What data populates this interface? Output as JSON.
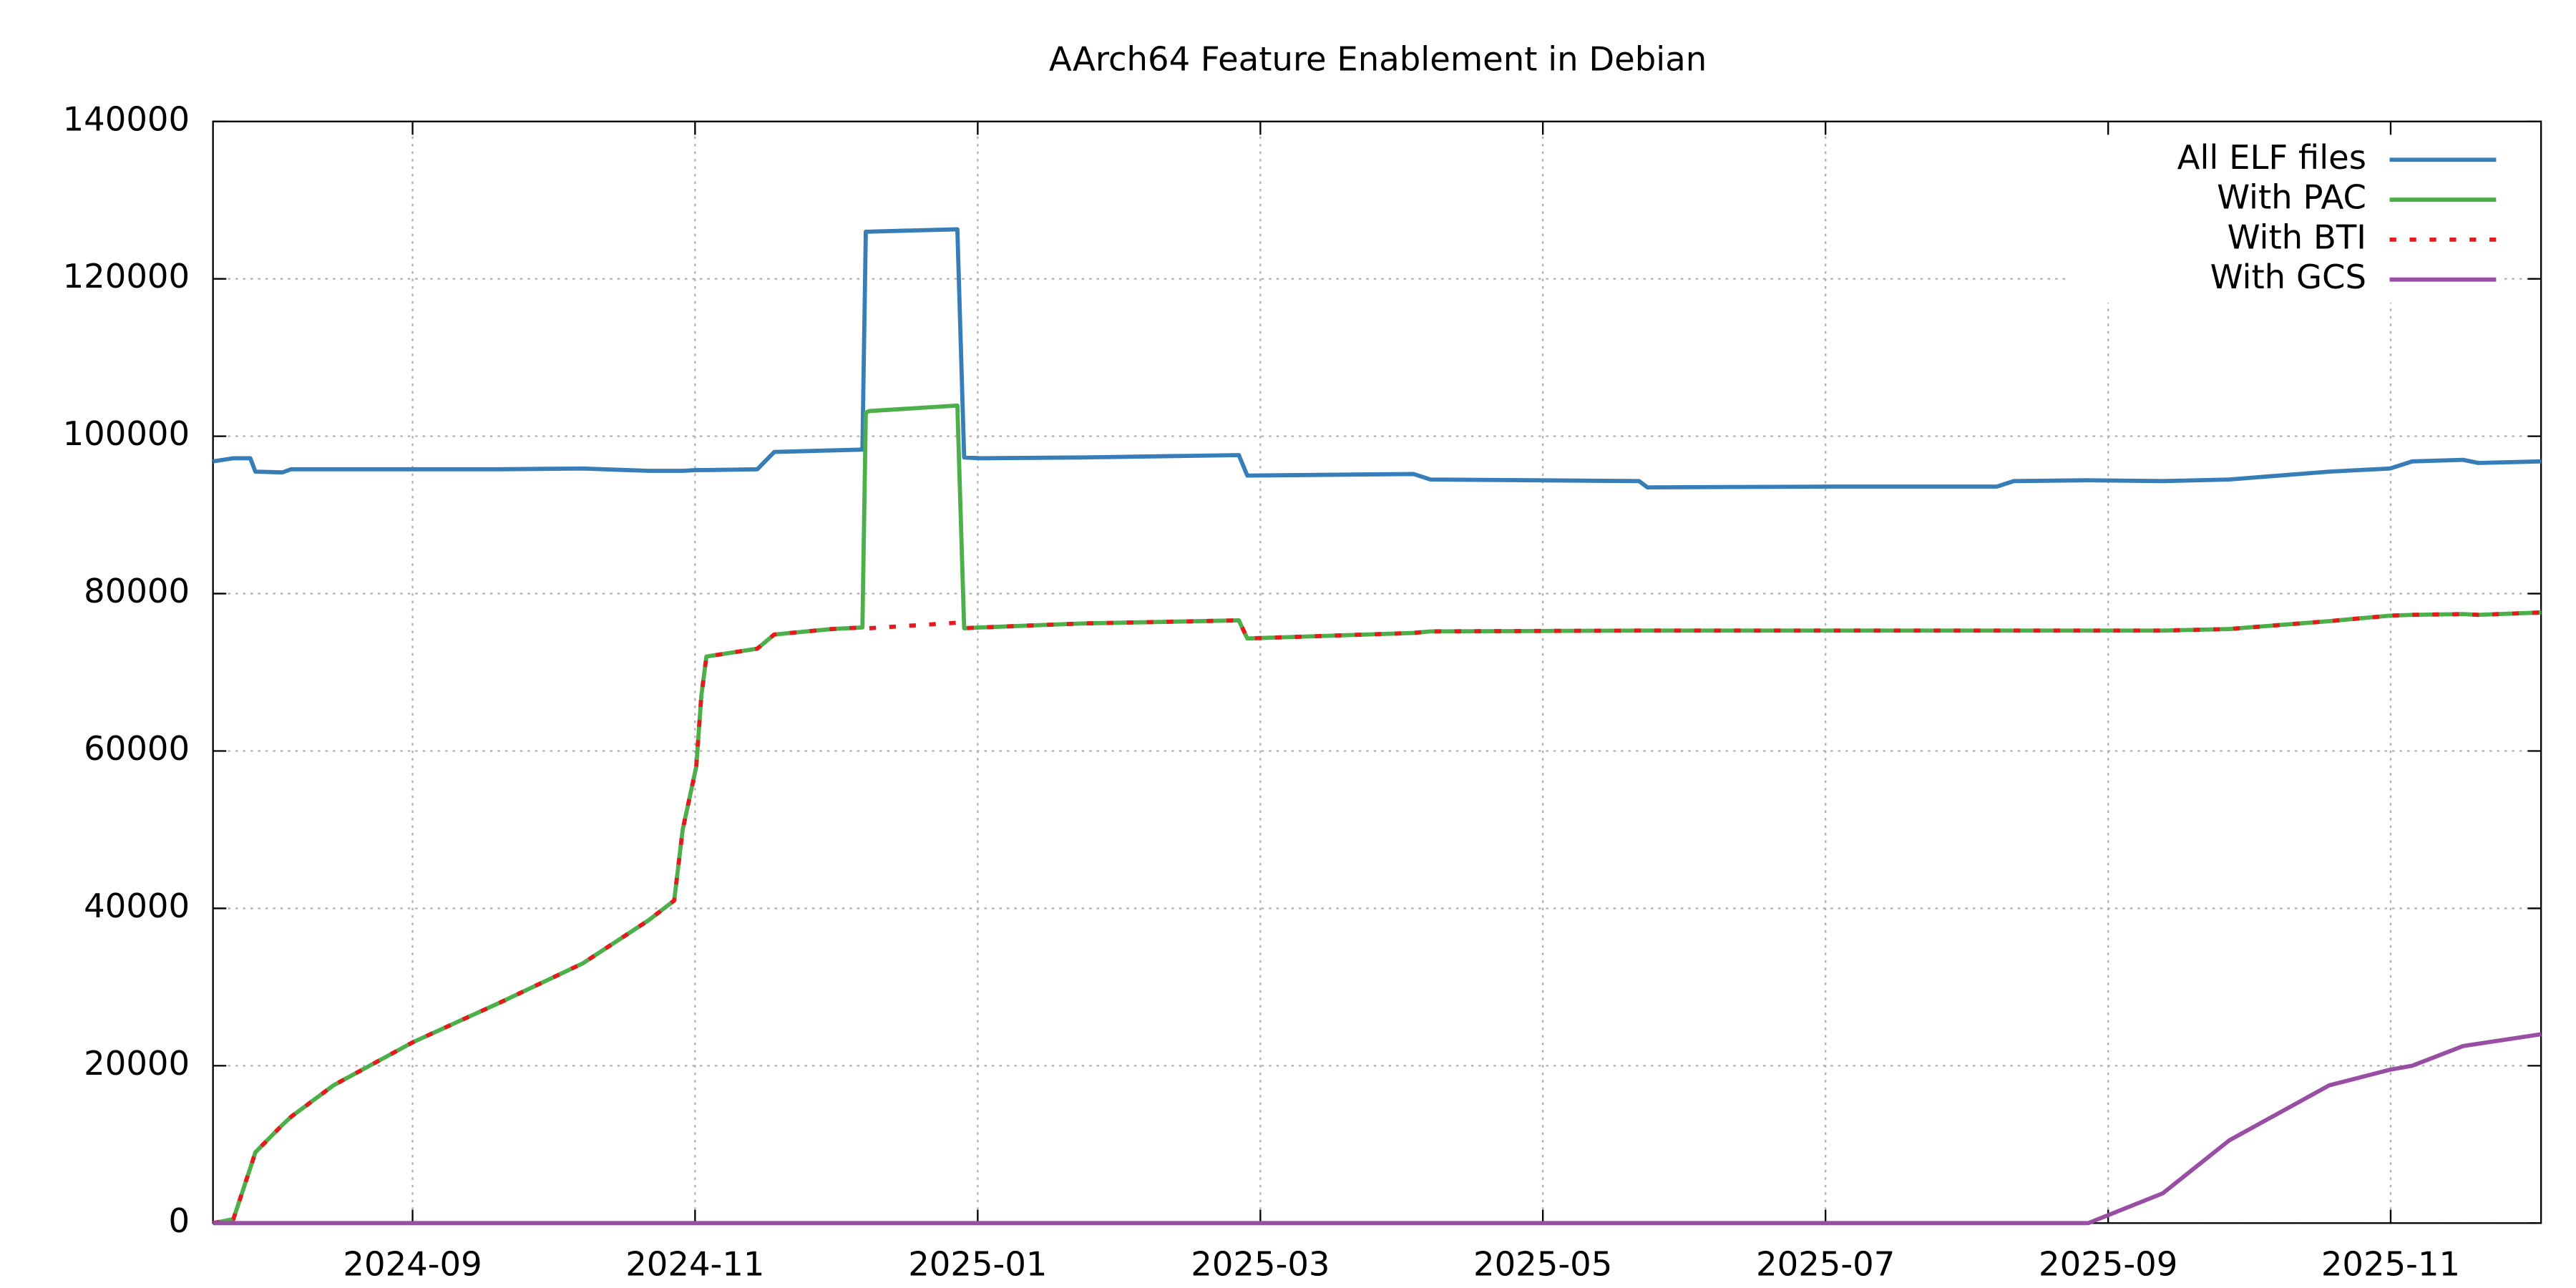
{
  "chart_data": {
    "type": "line",
    "title": "AArch64 Feature Enablement in Debian",
    "x": [
      2024.549,
      2024.561,
      2024.571,
      2024.574,
      2024.59,
      2024.595,
      2024.62,
      2024.667,
      2024.718,
      2024.767,
      2024.806,
      2024.821,
      2024.826,
      2024.834,
      2024.837,
      2024.84,
      2024.87,
      2024.88,
      2024.914,
      2024.932,
      2024.934,
      2024.936,
      2024.988,
      2024.992,
      2025.002,
      2025.061,
      2025.154,
      2025.159,
      2025.257,
      2025.267,
      2025.39,
      2025.395,
      2025.503,
      2025.601,
      2025.611,
      2025.655,
      2025.699,
      2025.738,
      2025.797,
      2025.833,
      2025.846,
      2025.876,
      2025.885,
      2025.922
    ],
    "series": [
      {
        "name": "All ELF files",
        "color": "#377eb8",
        "line_style": "solid",
        "values": [
          96800,
          97200,
          97200,
          95500,
          95400,
          95800,
          95800,
          95800,
          95800,
          95900,
          95600,
          95600,
          95600,
          95700,
          95700,
          95700,
          95800,
          98000,
          98200,
          98300,
          126000,
          126000,
          126300,
          97300,
          97200,
          97300,
          97600,
          95000,
          95200,
          94500,
          94300,
          93500,
          93600,
          93600,
          94300,
          94400,
          94300,
          94500,
          95500,
          95900,
          96800,
          97000,
          96600,
          96800
        ]
      },
      {
        "name": "With PAC",
        "color": "#4daf4a",
        "line_style": "solid",
        "values": [
          0,
          500,
          7000,
          9000,
          12500,
          13500,
          17500,
          23000,
          28000,
          33000,
          38500,
          41000,
          50000,
          58000,
          67000,
          72000,
          73000,
          74800,
          75500,
          75700,
          103000,
          103200,
          103900,
          75600,
          75700,
          76200,
          76600,
          74300,
          75000,
          75200,
          75300,
          75300,
          75300,
          75300,
          75300,
          75300,
          75300,
          75500,
          76500,
          77200,
          77300,
          77400,
          77300,
          77600
        ]
      },
      {
        "name": "With BTI",
        "color": "#e41a1c",
        "line_style": "dotted",
        "values": [
          0,
          500,
          7000,
          9000,
          12500,
          13500,
          17500,
          23000,
          28000,
          33000,
          38500,
          41000,
          50000,
          58000,
          67000,
          72000,
          73000,
          74800,
          75500,
          75700,
          75600,
          75600,
          76300,
          75600,
          75700,
          76200,
          76600,
          74300,
          75000,
          75200,
          75300,
          75300,
          75300,
          75300,
          75300,
          75300,
          75300,
          75500,
          76500,
          77200,
          77300,
          77400,
          77300,
          77600
        ]
      },
      {
        "name": "With GCS",
        "color": "#984ea3",
        "line_style": "solid",
        "values": [
          0,
          0,
          0,
          0,
          0,
          0,
          0,
          0,
          0,
          0,
          0,
          0,
          0,
          0,
          0,
          0,
          0,
          0,
          0,
          0,
          0,
          0,
          0,
          0,
          0,
          0,
          0,
          0,
          0,
          0,
          0,
          0,
          0,
          0,
          0,
          0,
          3800,
          10500,
          17500,
          19500,
          20000,
          22500,
          22800,
          24000
        ]
      }
    ],
    "xlim": [
      2024.549,
      2025.922
    ],
    "xticks": [
      {
        "value": 2024.6667,
        "label": "2024-09"
      },
      {
        "value": 2024.8333,
        "label": "2024-11"
      },
      {
        "value": 2025.0,
        "label": "2025-01"
      },
      {
        "value": 2025.1667,
        "label": "2025-03"
      },
      {
        "value": 2025.3333,
        "label": "2025-05"
      },
      {
        "value": 2025.5,
        "label": "2025-07"
      },
      {
        "value": 2025.6667,
        "label": "2025-09"
      },
      {
        "value": 2025.8333,
        "label": "2025-11"
      }
    ],
    "ylim": [
      0,
      140000
    ],
    "yticks": [
      0,
      20000,
      40000,
      60000,
      80000,
      100000,
      120000,
      140000
    ],
    "grid": true,
    "legend": "top-right"
  }
}
